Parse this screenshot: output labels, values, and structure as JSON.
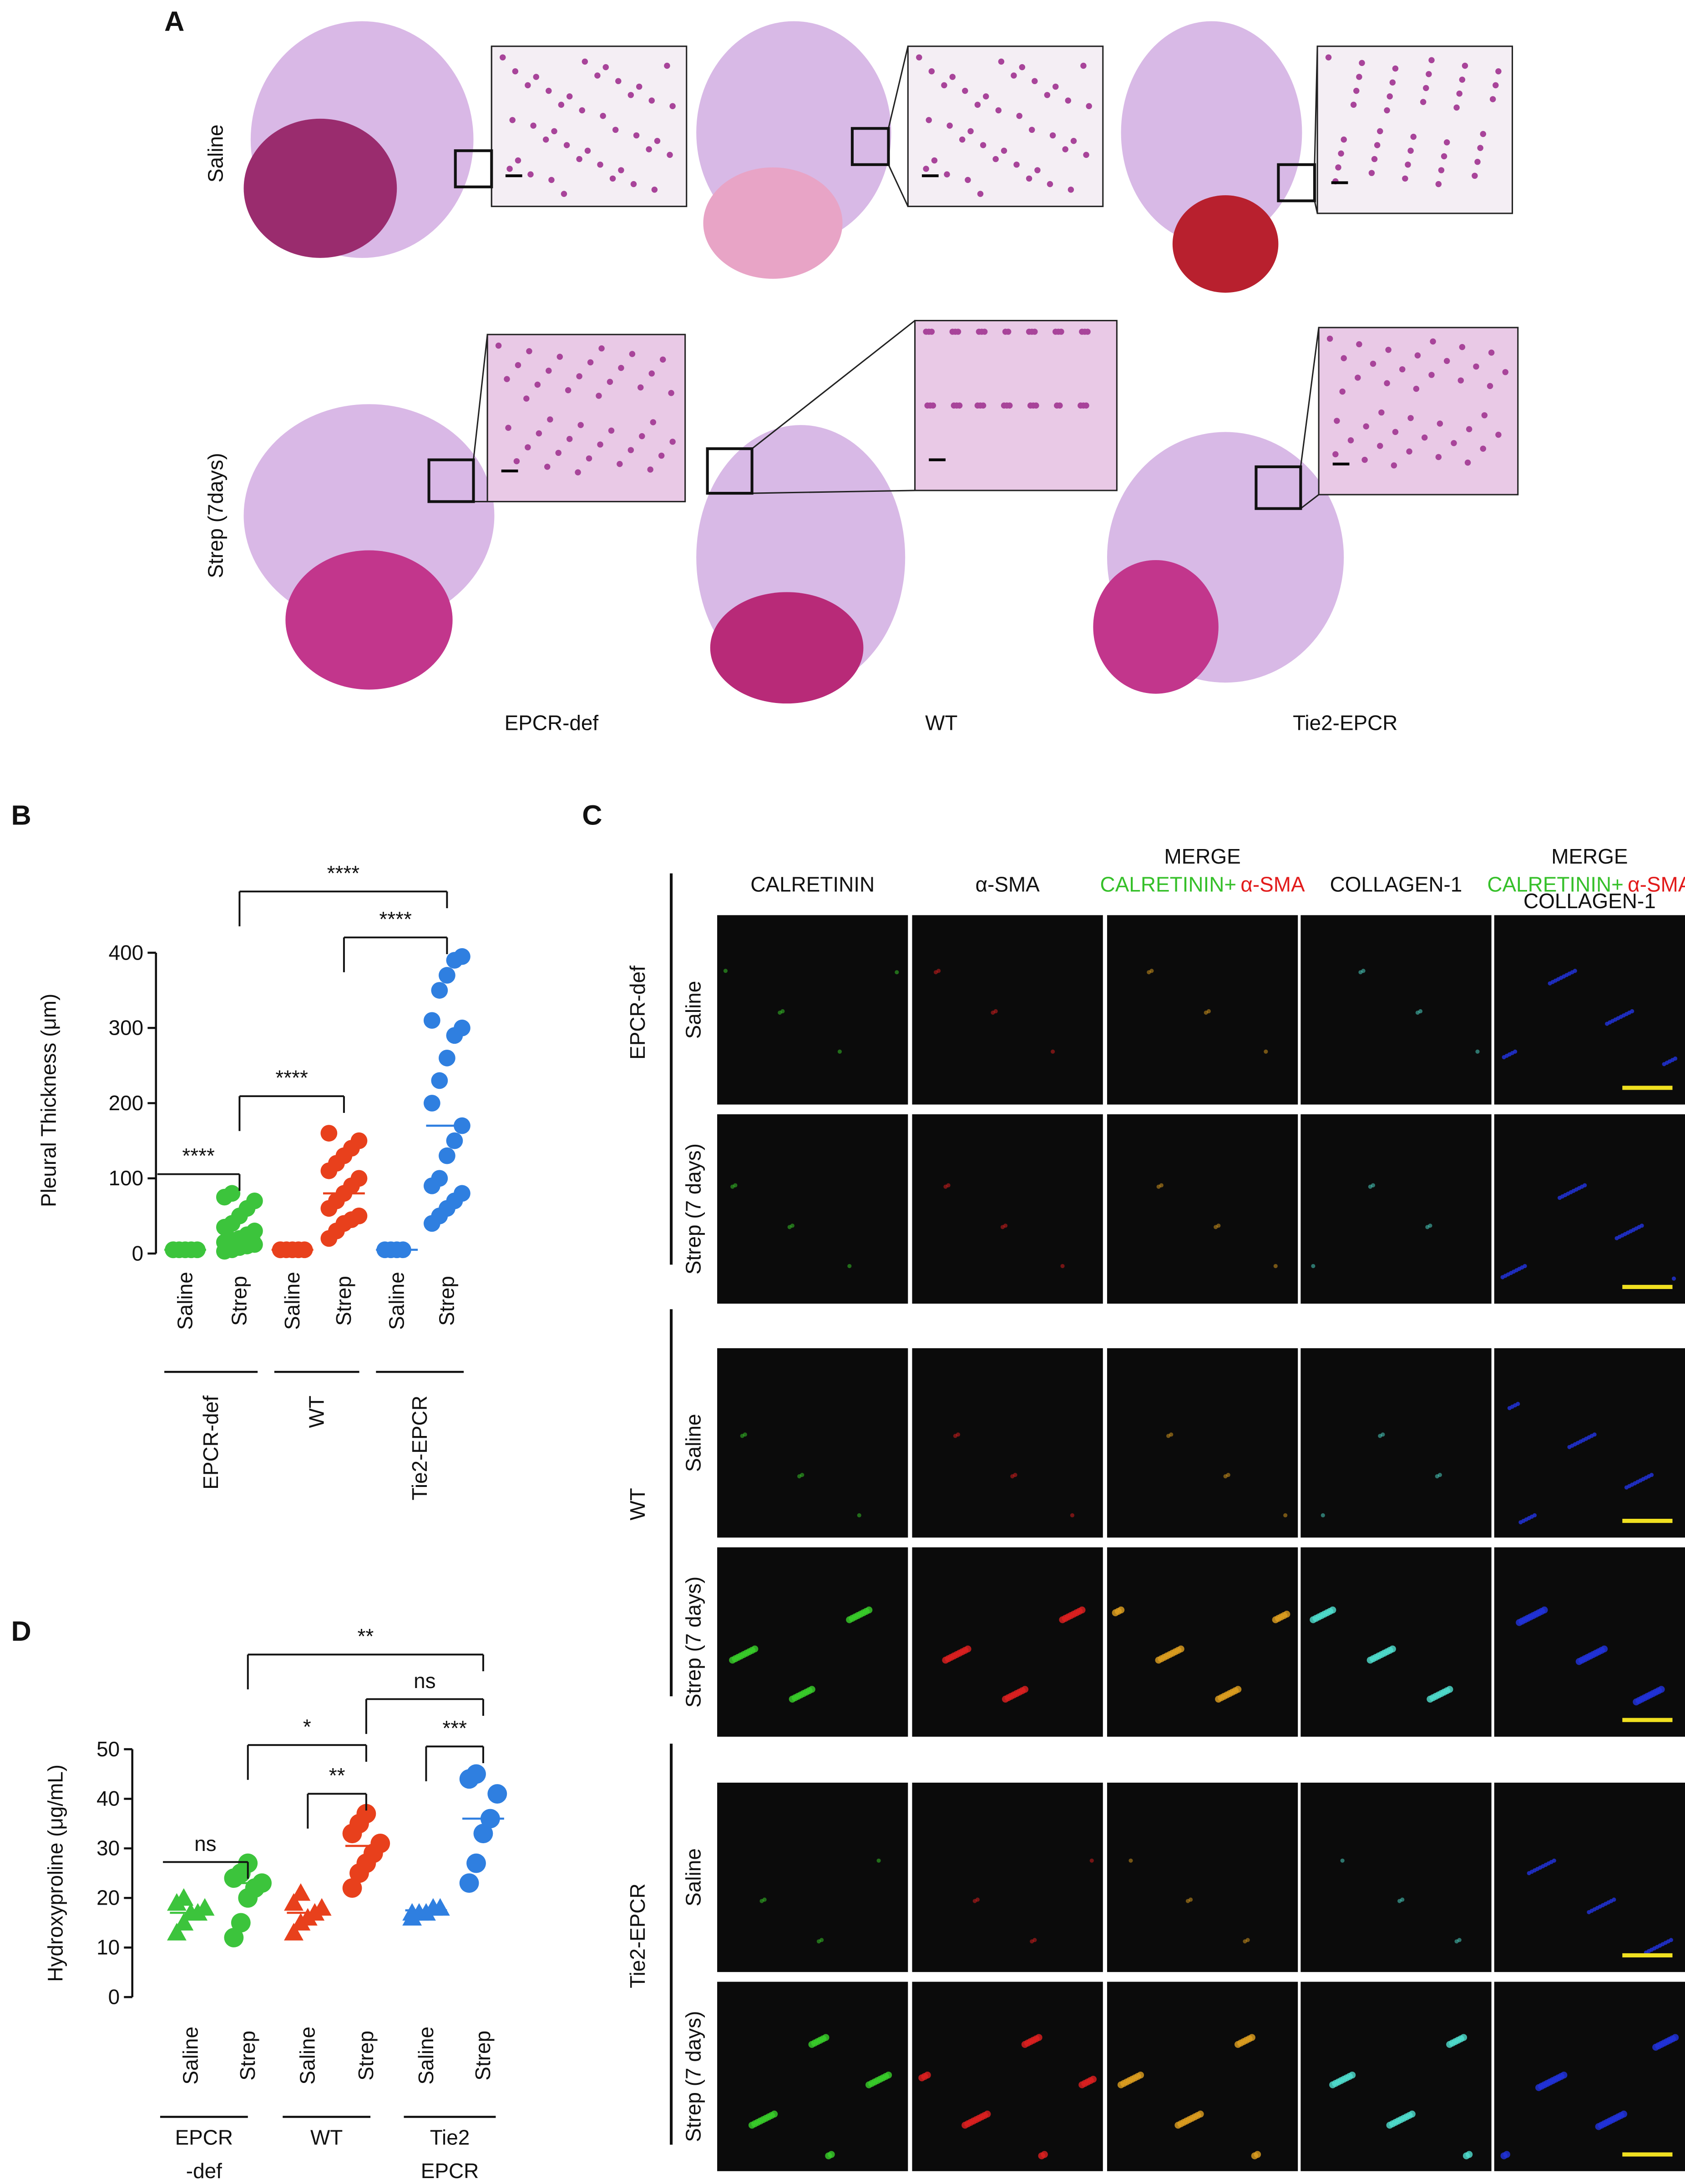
{
  "panel_a": {
    "letter": "A",
    "rows": [
      "Saline",
      "Strep (7days)"
    ],
    "columns": [
      "EPCR-def",
      "WT",
      "Tie2-EPCR"
    ]
  },
  "panel_c": {
    "letter": "C",
    "columns": [
      {
        "title": "CALRETININ"
      },
      {
        "title": "α-SMA"
      },
      {
        "title": "MERGE",
        "sub": [
          "CALRETININ+",
          "α-SMA"
        ]
      },
      {
        "title": "COLLAGEN-1"
      },
      {
        "title": "MERGE",
        "sub": [
          "CALRETININ+",
          "α-SMA",
          "COLLAGEN-1"
        ]
      }
    ],
    "groups": [
      "EPCR-def",
      "WT",
      "Tie2-EPCR"
    ],
    "rows": [
      "Saline",
      "Strep (7 days)"
    ]
  },
  "chart_data": [
    {
      "type": "strip",
      "letter": "B",
      "y_label": "Pleural Thickness (μm)",
      "categories": [
        "Saline",
        "Strep",
        "Saline",
        "Strep",
        "Saline",
        "Strep"
      ],
      "groups": [
        "EPCR-def",
        "WT",
        "Tie2-EPCR"
      ],
      "colors": [
        "#3cc43c",
        "#e8401c",
        "#2f7fe0"
      ],
      "markers": [
        "circle",
        "circle",
        "circle",
        "circle",
        "circle",
        "circle"
      ],
      "values": [
        [
          5,
          5,
          5,
          5,
          5,
          5
        ],
        [
          3,
          5,
          8,
          10,
          12,
          15,
          18,
          20,
          25,
          30,
          35,
          40,
          50,
          60,
          70,
          75,
          80
        ],
        [
          5,
          5,
          5,
          5,
          5,
          5
        ],
        [
          20,
          30,
          40,
          45,
          50,
          60,
          70,
          80,
          90,
          100,
          110,
          120,
          130,
          140,
          150,
          160
        ],
        [
          5,
          5,
          5,
          5
        ],
        [
          40,
          50,
          60,
          70,
          80,
          90,
          100,
          130,
          150,
          170,
          200,
          230,
          260,
          290,
          300,
          310,
          350,
          370,
          390,
          395
        ]
      ],
      "means": [
        5,
        20,
        5,
        80,
        5,
        170
      ],
      "ylim": [
        0,
        400
      ],
      "yticks": [
        0,
        100,
        200,
        300,
        400
      ],
      "significance": [
        "****",
        "****",
        "****",
        "****"
      ]
    },
    {
      "type": "strip",
      "letter": "D",
      "y_label": "Hydroxyproline (μg/mL)",
      "categories": [
        "Saline",
        "Strep",
        "Saline",
        "Strep",
        "Saline",
        "Strep"
      ],
      "groups": [
        [
          "EPCR",
          "-def"
        ],
        [
          "WT"
        ],
        [
          "Tie2",
          "EPCR"
        ]
      ],
      "colors": [
        "#3cc43c",
        "#e8401c",
        "#2f7fe0"
      ],
      "markers": [
        "triangle",
        "circle",
        "triangle",
        "circle",
        "triangle",
        "circle"
      ],
      "values": [
        [
          13,
          15,
          17,
          17,
          18,
          19,
          20
        ],
        [
          12,
          15,
          20,
          22,
          23,
          24,
          25,
          27
        ],
        [
          13,
          15,
          16,
          17,
          18,
          19,
          21
        ],
        [
          22,
          25,
          27,
          29,
          31,
          33,
          35,
          37
        ],
        [
          16,
          17,
          17,
          18,
          18,
          17
        ],
        [
          23,
          27,
          33,
          36,
          41,
          44,
          45
        ]
      ],
      "means": [
        17,
        23,
        17,
        30.5,
        17.5,
        36
      ],
      "ylim": [
        0,
        50
      ],
      "yticks": [
        0,
        10,
        20,
        30,
        40,
        50
      ],
      "significance": [
        "ns",
        "*",
        "**",
        "**",
        "ns",
        "***"
      ]
    }
  ]
}
